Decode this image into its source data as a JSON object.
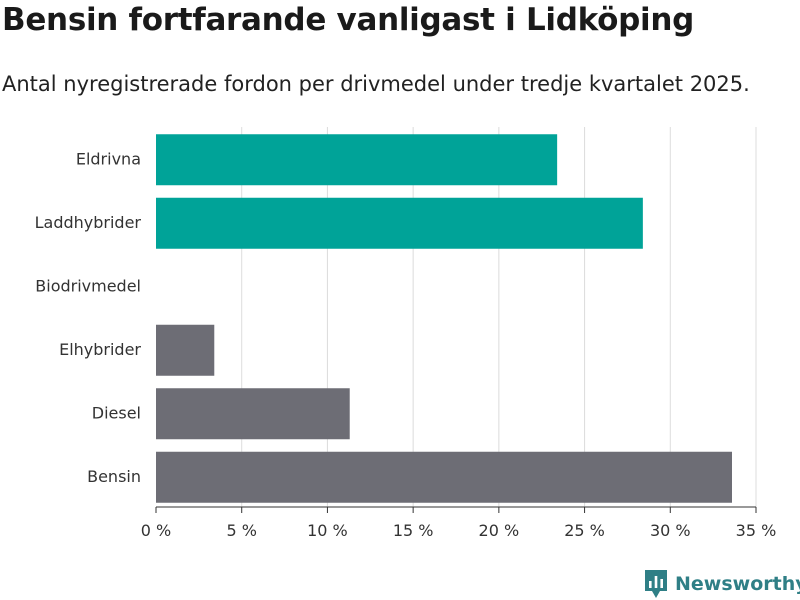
{
  "chart_data": {
    "type": "bar",
    "orientation": "horizontal",
    "title": "Bensin fortfarande vanligast i Lidköping",
    "subtitle": "Antal nyregistrerade fordon per drivmedel under tredje kvartalet 2025.",
    "categories": [
      "Eldrivna",
      "Laddhybrider",
      "Biodrivmedel",
      "Elhybrider",
      "Diesel",
      "Bensin"
    ],
    "values": [
      23.4,
      28.4,
      0,
      3.4,
      11.3,
      33.6
    ],
    "bar_colors": [
      "#00a398",
      "#00a398",
      "#6d6d75",
      "#6d6d75",
      "#6d6d75",
      "#6d6d75"
    ],
    "xlim": [
      0,
      35
    ],
    "x_ticks": [
      0,
      5,
      10,
      15,
      20,
      25,
      30,
      35
    ],
    "x_tick_labels": [
      "0 %",
      "5 %",
      "10 %",
      "15 %",
      "20 %",
      "25 %",
      "30 %",
      "35 %"
    ],
    "xlabel": "",
    "ylabel": "",
    "grid": true
  },
  "brand": {
    "name": "Newsworthy",
    "color": "#2f7f86",
    "icon": "newsworthy-logo-icon"
  }
}
